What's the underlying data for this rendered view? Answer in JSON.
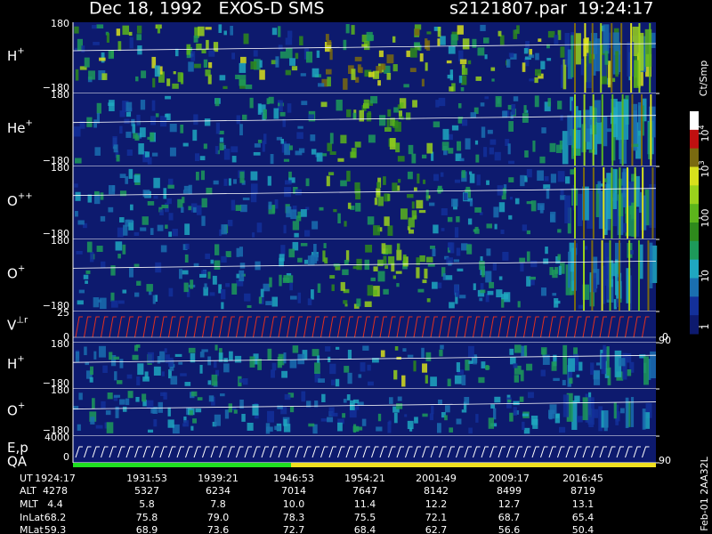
{
  "header": {
    "left": "Dec 18, 1992   EXOS-D SMS",
    "right": "s2121807.par  19:24:17"
  },
  "panels": [
    {
      "base": "H",
      "sup": "+",
      "top": "180",
      "bottom": "−180"
    },
    {
      "base": "He",
      "sup": "+",
      "top": "180",
      "bottom": "−180"
    },
    {
      "base": "O",
      "sup": "++",
      "top": "180",
      "bottom": "−180"
    },
    {
      "base": "O",
      "sup": "+",
      "top": "180",
      "bottom": "−180"
    },
    {
      "base": "V",
      "sup": "⊥r",
      "top": "25",
      "bottom": "0",
      "right_top": "90",
      "right_bottom": "0"
    },
    {
      "base": "H",
      "sup": "+",
      "top": "180",
      "bottom": "−180"
    },
    {
      "base": "O",
      "sup": "+",
      "top": "180",
      "bottom": "−180"
    },
    {
      "base": "E,p",
      "sup": "",
      "top": "4000",
      "bottom": "0",
      "right_top": "90"
    }
  ],
  "qa_label": "QA",
  "colorbar": {
    "unit": "Ct/Smp",
    "ticks": [
      {
        "base": "10",
        "sup": "4"
      },
      {
        "base": "10",
        "sup": "3"
      },
      {
        "base": "100",
        "sup": ""
      },
      {
        "base": "10",
        "sup": ""
      },
      {
        "base": "1",
        "sup": ""
      }
    ]
  },
  "footer_note": "Feb-01 2AA32L",
  "table": {
    "rows": [
      [
        "UT",
        "1924:17",
        "1931:53",
        "1939:21",
        "1946:53",
        "1954:21",
        "2001:49",
        "2009:17",
        "2016:45"
      ],
      [
        "ALT",
        "4278",
        "5327",
        "6234",
        "7014",
        "7647",
        "8142",
        "8499",
        "8719"
      ],
      [
        "MLT",
        "4.4",
        "5.8",
        "7.8",
        "10.0",
        "11.4",
        "12.2",
        "12.7",
        "13.1"
      ],
      [
        "InLat",
        "68.2",
        "75.8",
        "79.0",
        "78.3",
        "75.5",
        "72.1",
        "68.7",
        "65.4"
      ],
      [
        "MLat",
        "59.3",
        "68.9",
        "73.6",
        "72.7",
        "68.4",
        "62.7",
        "56.6",
        "50.4"
      ]
    ]
  }
}
